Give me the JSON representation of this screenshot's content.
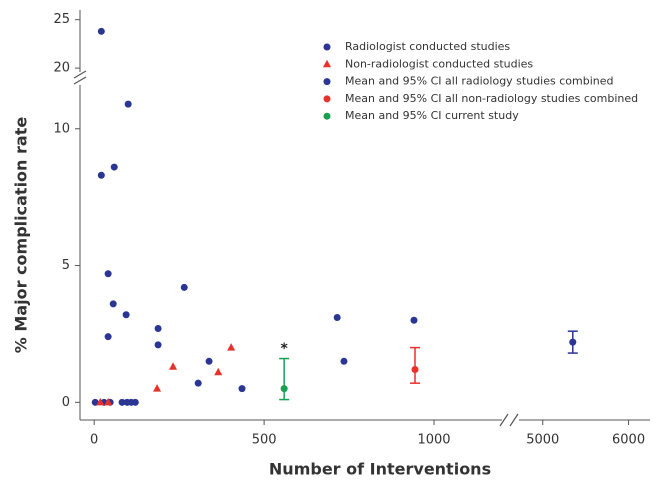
{
  "chart_data": {
    "type": "scatter",
    "xlabel": "Number of Interventions",
    "ylabel": "% Major complication rate",
    "x_segments": [
      {
        "xlim": [
          -30,
          1200
        ],
        "xticks": [
          0,
          500,
          1000
        ]
      },
      {
        "xlim": [
          4700,
          6250
        ],
        "xticks": [
          5000,
          6000
        ]
      }
    ],
    "y_segments": [
      {
        "ylim": [
          -0.5,
          11.6
        ],
        "yticks": [
          0,
          5,
          10
        ]
      },
      {
        "ylim": [
          19.6,
          26
        ],
        "yticks": [
          20,
          25
        ]
      }
    ],
    "series": [
      {
        "name": "Radiologist conducted studies",
        "color": "#2b3593",
        "marker": "circle",
        "x": [
          21,
          21,
          59,
          100,
          41,
          56,
          41,
          94,
          188,
          188,
          265,
          306,
          338,
          435,
          715,
          735,
          941,
          3,
          29,
          47,
          82,
          97,
          109,
          121
        ],
        "y": [
          23.8,
          8.3,
          8.6,
          10.9,
          4.7,
          3.6,
          2.4,
          3.2,
          2.7,
          2.1,
          4.2,
          0.7,
          1.5,
          0.5,
          3.1,
          1.5,
          3.0,
          0,
          0,
          0,
          0,
          0,
          0,
          0
        ]
      },
      {
        "name": "Non-radiologist conducted studies",
        "color": "#e8312a",
        "marker": "triangle",
        "x": [
          18,
          41,
          185,
          232,
          365,
          403
        ],
        "y": [
          0,
          0,
          0.5,
          1.3,
          1.1,
          2.0
        ]
      },
      {
        "name": "Mean and 95% CI all radiology studies combined",
        "color": "#2b3593",
        "marker": "circle",
        "x": [
          5350
        ],
        "y": [
          2.2
        ],
        "lower": [
          1.8
        ],
        "upper": [
          2.6
        ]
      },
      {
        "name": "Mean and 95% CI all non-radiology studies combined",
        "color": "#e8312a",
        "marker": "circle",
        "x": [
          944
        ],
        "y": [
          1.2
        ],
        "lower": [
          0.7
        ],
        "upper": [
          2.0
        ]
      },
      {
        "name": "Mean and 95% CI current study",
        "color": "#1aa052",
        "marker": "circle",
        "x": [
          559
        ],
        "y": [
          0.5
        ],
        "lower": [
          0.1
        ],
        "upper": [
          1.6
        ]
      }
    ],
    "annotations": [
      {
        "text": "*",
        "x": 559,
        "y": 1.95
      }
    ]
  }
}
